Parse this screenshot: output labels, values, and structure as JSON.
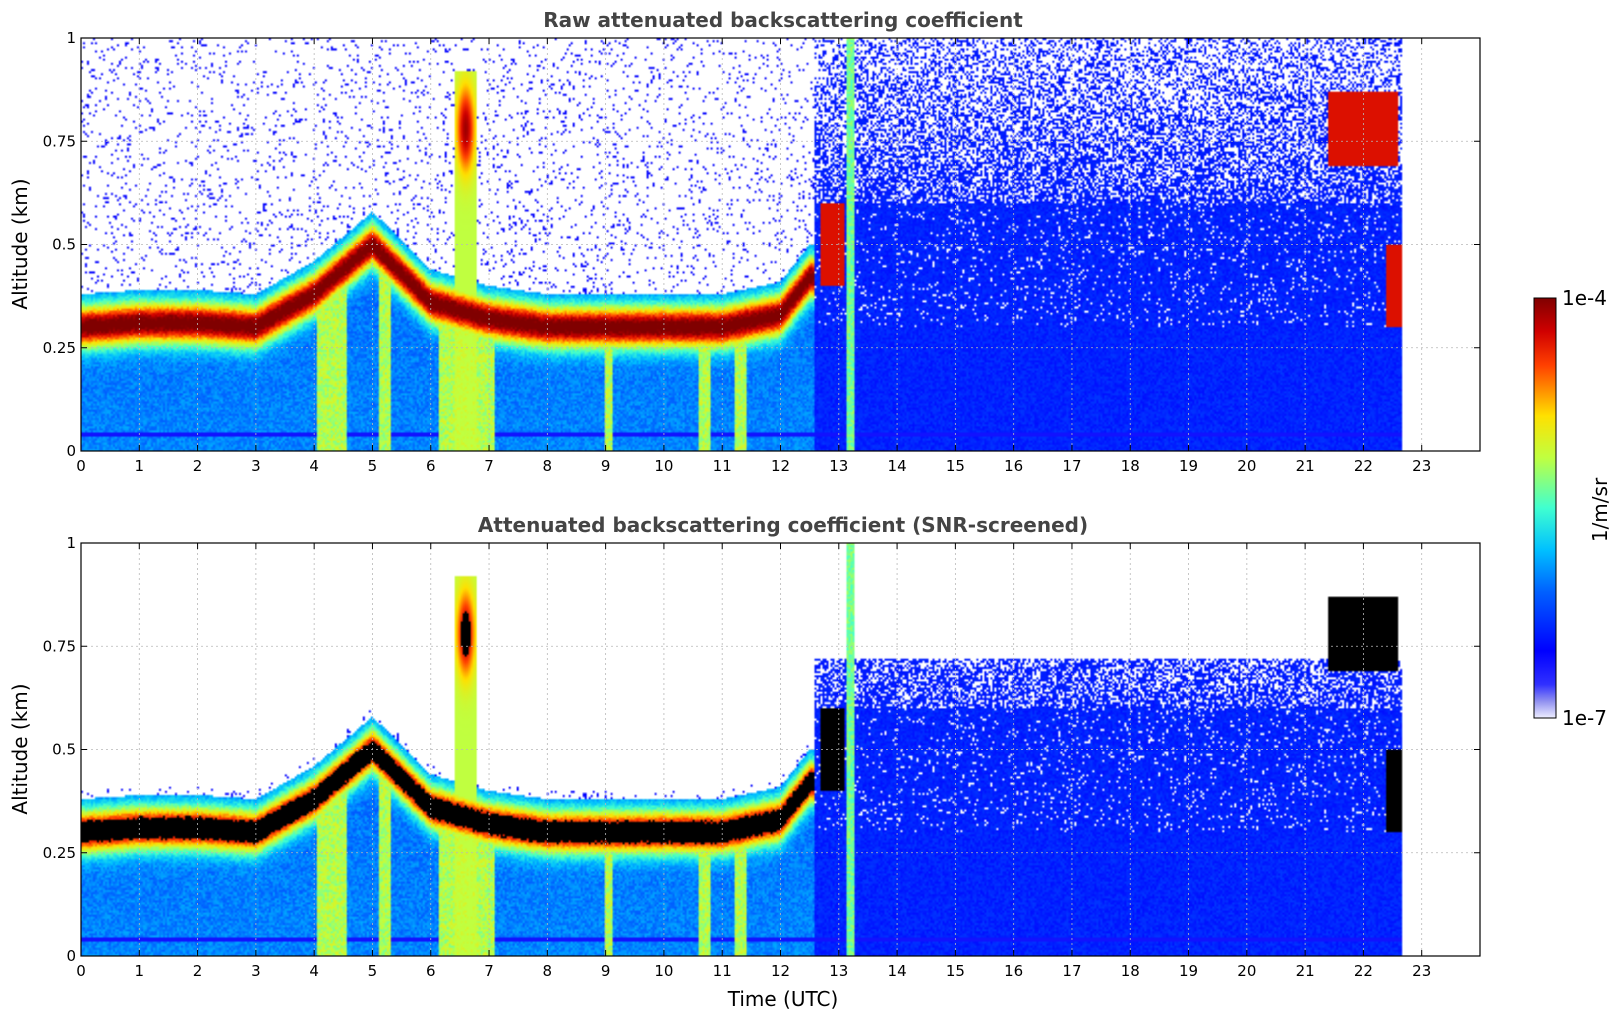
{
  "chart_data": {
    "type": "heatmap",
    "colorbar": {
      "label": "1/m/sr",
      "max_label": "1e-4",
      "min_label": "1e-7",
      "vmin": 1e-07,
      "vmax": 0.0001,
      "scale": "log",
      "colormap": "jet"
    },
    "xlabel": "Time (UTC)",
    "x_ticks": [
      "0",
      "1",
      "2",
      "3",
      "4",
      "5",
      "6",
      "7",
      "8",
      "9",
      "10",
      "11",
      "12",
      "13",
      "14",
      "15",
      "16",
      "17",
      "18",
      "19",
      "20",
      "21",
      "22",
      "23"
    ],
    "xlim": [
      0,
      24
    ],
    "data_extent_hours": [
      0,
      22.65
    ],
    "grid": true,
    "panels": [
      {
        "title": "Raw attenuated backscattering coefficient",
        "ylabel": "Altitude (km)",
        "y_ticks": [
          "0",
          "0.25",
          "0.5",
          "0.75",
          "1"
        ],
        "ylim": [
          0,
          1
        ],
        "layer_peak_altitude_km": [
          [
            0,
            0.3
          ],
          [
            1,
            0.31
          ],
          [
            2,
            0.31
          ],
          [
            3,
            0.3
          ],
          [
            4,
            0.38
          ],
          [
            5,
            0.5
          ],
          [
            6,
            0.36
          ],
          [
            7,
            0.32
          ],
          [
            8,
            0.3
          ],
          [
            9,
            0.3
          ],
          [
            10,
            0.3
          ],
          [
            11,
            0.3
          ],
          [
            12,
            0.33
          ],
          [
            12.5,
            0.42
          ]
        ],
        "features": [
          {
            "type": "plume",
            "time_h": 6.6,
            "top_km": 0.92
          },
          {
            "type": "precip_streak",
            "time_h": 13.2,
            "top_km": 1.0
          },
          {
            "type": "high_cloud",
            "time_h": 21.5,
            "to_h": 22.6,
            "altitude_km": 0.78
          }
        ]
      },
      {
        "title": "Attenuated backscattering coefficient (SNR-screened)",
        "ylabel": "Altitude (km)",
        "y_ticks": [
          "0",
          "0.25",
          "0.5",
          "0.75",
          "1"
        ],
        "ylim": [
          0,
          1
        ],
        "saturated_color": "#000000",
        "screened_color": "#ffffff"
      }
    ]
  }
}
